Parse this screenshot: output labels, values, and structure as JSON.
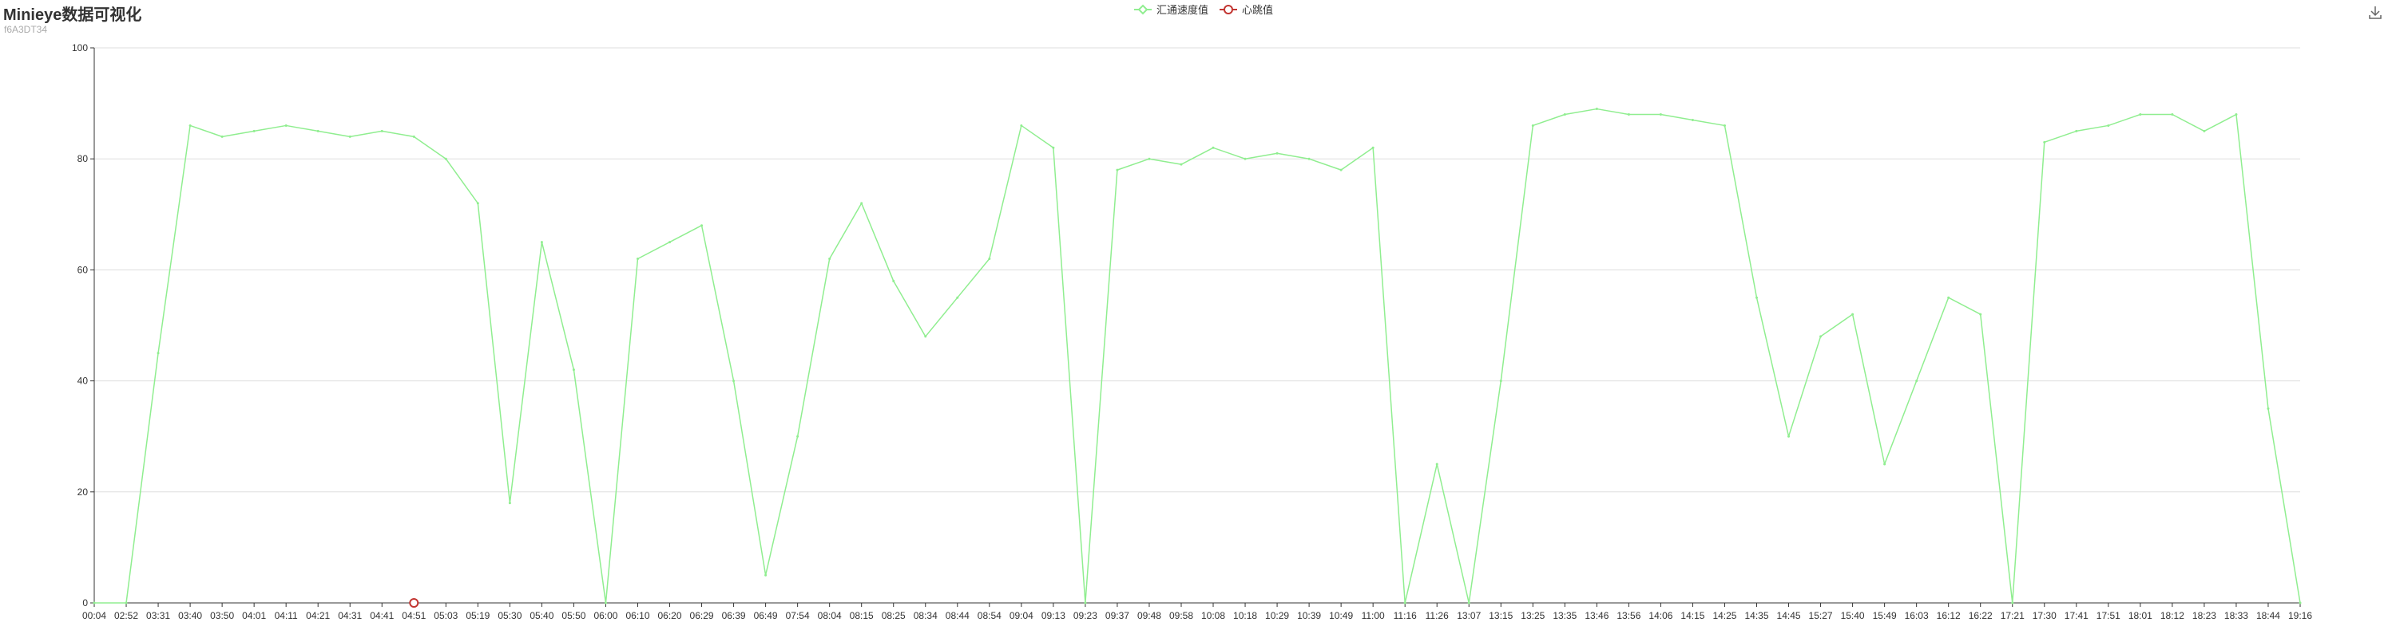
{
  "header": {
    "title": "Minieye数据可视化",
    "subtitle": "f6A3DT34"
  },
  "legend": [
    {
      "name": "汇通速度值",
      "color": "#90ee90",
      "icon": "diamond-icon"
    },
    {
      "name": "心跳值",
      "color": "#c23531",
      "icon": "circle-icon"
    }
  ],
  "toolbar": {
    "download_icon": "download-icon"
  },
  "colors": {
    "speed": "#90ee90",
    "heartbeat": "#c23531",
    "grid": "#dddddd",
    "axis": "#333333",
    "text": "#333333"
  },
  "chart_data": {
    "type": "line",
    "title": "Minieye数据可视化",
    "subtitle": "f6A3DT34",
    "xlabel": "",
    "ylabel": "",
    "ylim": [
      0,
      100
    ],
    "yticks": [
      0,
      20,
      40,
      60,
      80,
      100
    ],
    "grid": true,
    "legend_position": "top-center",
    "categories": [
      "00:04",
      "02:52",
      "03:31",
      "03:40",
      "03:50",
      "04:01",
      "04:11",
      "04:21",
      "04:31",
      "04:41",
      "04:51",
      "05:03",
      "05:19",
      "05:30",
      "05:40",
      "05:50",
      "06:00",
      "06:10",
      "06:20",
      "06:29",
      "06:39",
      "06:49",
      "07:54",
      "08:04",
      "08:15",
      "08:25",
      "08:34",
      "08:44",
      "08:54",
      "09:04",
      "09:13",
      "09:23",
      "09:37",
      "09:48",
      "09:58",
      "10:08",
      "10:18",
      "10:29",
      "10:39",
      "10:49",
      "11:00",
      "11:16",
      "11:26",
      "13:07",
      "13:15",
      "13:25",
      "13:35",
      "13:46",
      "13:56",
      "14:06",
      "14:15",
      "14:25",
      "14:35",
      "14:45",
      "15:27",
      "15:40",
      "15:49",
      "16:03",
      "16:12",
      "16:22",
      "17:21",
      "17:30",
      "17:41",
      "17:51",
      "18:01",
      "18:12",
      "18:23",
      "18:33",
      "18:44",
      "19:16"
    ],
    "series": [
      {
        "name": "汇通速度值",
        "values": [
          0,
          0,
          45,
          86,
          84,
          85,
          86,
          85,
          84,
          85,
          84,
          80,
          72,
          18,
          65,
          42,
          0,
          62,
          65,
          68,
          40,
          5,
          30,
          62,
          72,
          58,
          48,
          55,
          62,
          86,
          82,
          0,
          78,
          80,
          79,
          82,
          80,
          81,
          80,
          78,
          82,
          0,
          25,
          0,
          40,
          86,
          88,
          89,
          88,
          88,
          87,
          86,
          55,
          30,
          48,
          52,
          25,
          40,
          55,
          52,
          0,
          83,
          85,
          86,
          88,
          88,
          85,
          88,
          35,
          0
        ]
      },
      {
        "name": "心跳值",
        "points": [
          {
            "x": "04:51",
            "y": 0
          }
        ]
      }
    ]
  }
}
